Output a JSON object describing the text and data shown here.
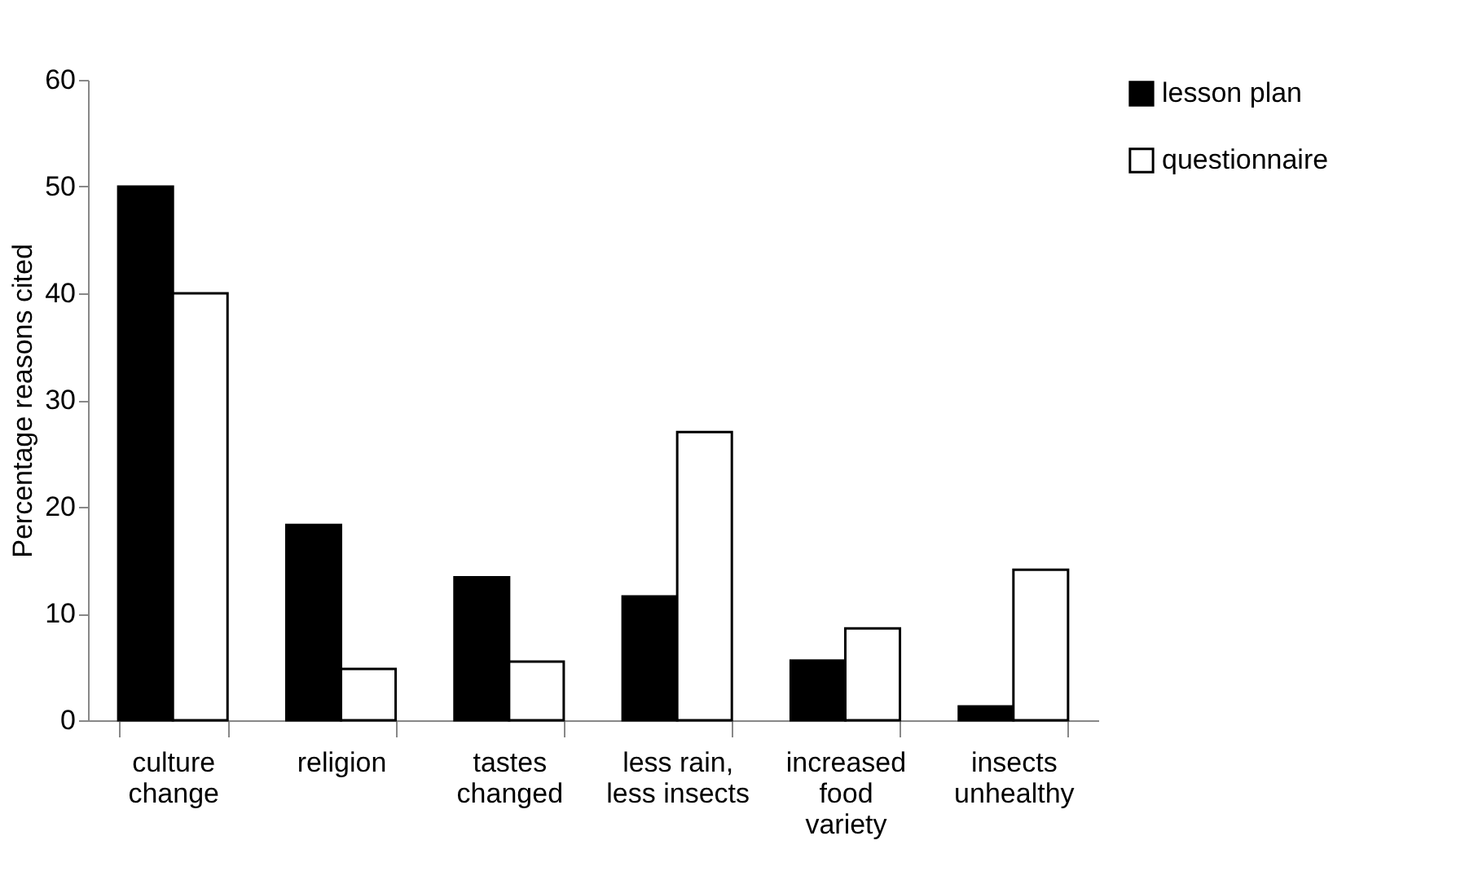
{
  "chart_data": {
    "type": "bar",
    "ylabel": "Percentage reasons cited",
    "categories": [
      "culture\nchange",
      "religion",
      "tastes\nchanged",
      "less rain,\nless insects",
      "increased\nfood\nvariety",
      "insects\nunhealthy"
    ],
    "series": [
      {
        "name": "lesson plan",
        "color": "#000000",
        "values": [
          50,
          18.3,
          13.4,
          11.6,
          5.6,
          1.3
        ]
      },
      {
        "name": "questionnaire",
        "color": "#ffffff",
        "values": [
          40,
          4.8,
          5.5,
          27.0,
          8.6,
          14.1
        ]
      }
    ],
    "ylim": [
      0,
      60
    ],
    "yticks": [
      0,
      10,
      20,
      30,
      40,
      50,
      60
    ],
    "grid": false,
    "legend": "right"
  }
}
